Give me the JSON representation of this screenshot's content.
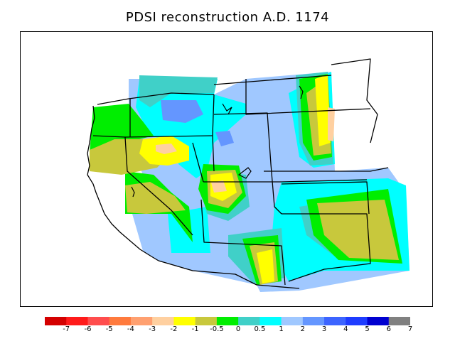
{
  "title": "PDSI reconstruction A.D. 1174",
  "legend": {
    "labels": [
      "-7",
      "-6",
      "-5",
      "-4",
      "-3",
      "-2",
      "-1",
      "-0.5",
      "0",
      "0.5",
      "1",
      "2",
      "3",
      "4",
      "5",
      "6",
      "7"
    ],
    "colors": [
      "#d40000",
      "#ff1a1a",
      "#ff4d4d",
      "#ff7a3d",
      "#ffa070",
      "#ffd0a0",
      "#ffff00",
      "#c8c83c",
      "#00ee00",
      "#40d0c8",
      "#00ffff",
      "#a0c8ff",
      "#6496ff",
      "#3c64ff",
      "#1e3cff",
      "#0000d0",
      "#808080"
    ]
  },
  "regions": [
    {
      "name": "base-light-blue",
      "color": "#a0c8ff"
    },
    {
      "name": "cyan",
      "color": "#00ffff"
    },
    {
      "name": "teal",
      "color": "#40d0c8"
    },
    {
      "name": "green",
      "color": "#00ee00"
    },
    {
      "name": "olive",
      "color": "#c8c83c"
    },
    {
      "name": "yellow",
      "color": "#ffff00"
    },
    {
      "name": "peach",
      "color": "#ffd0a0"
    },
    {
      "name": "blue",
      "color": "#6496ff"
    }
  ]
}
